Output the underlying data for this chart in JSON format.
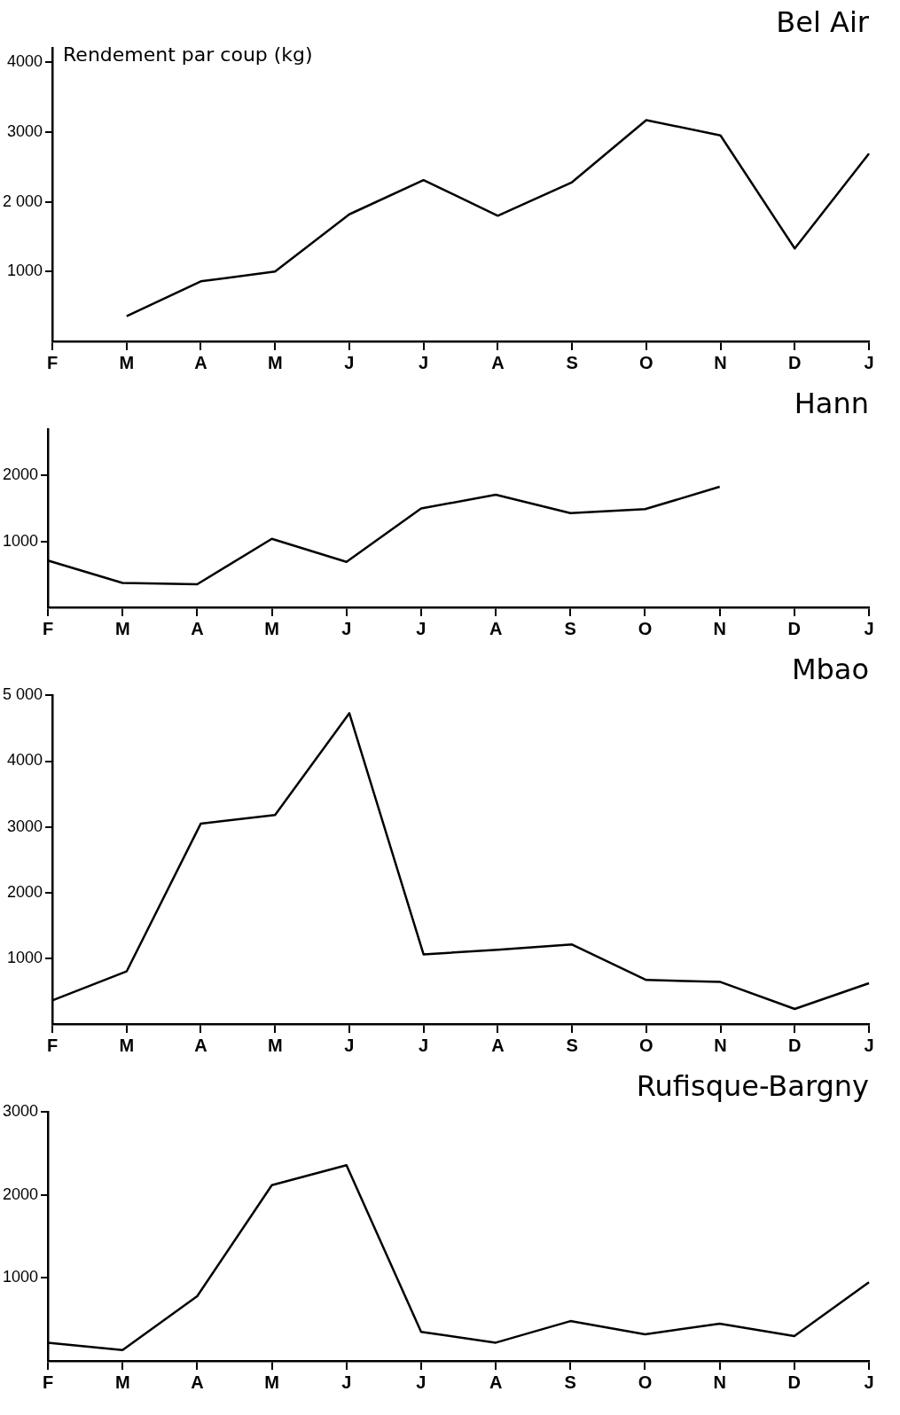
{
  "chart_data": [
    {
      "type": "line",
      "title": "Bel Air",
      "ylabel": "Rendement par coup (kg)",
      "categories": [
        "F",
        "M",
        "A",
        "M",
        "J",
        "J",
        "A",
        "S",
        "O",
        "N",
        "D",
        "J"
      ],
      "series": [
        {
          "color": "#000000",
          "values": [
            null,
            360,
            860,
            1000,
            1820,
            2310,
            1800,
            2280,
            3170,
            2950,
            1330,
            2690
          ]
        }
      ],
      "ylim": [
        0,
        4200
      ],
      "yticks": [
        4000,
        3000,
        {
          "value": 2000,
          "label": "2 000"
        },
        1000
      ],
      "grid": false,
      "legend": false,
      "marker": "none",
      "line_style": "solid"
    },
    {
      "type": "line",
      "title": "Hann",
      "categories": [
        "F",
        "M",
        "A",
        "M",
        "J",
        "J",
        "A",
        "S",
        "O",
        "N",
        "D",
        "J"
      ],
      "series": [
        {
          "color": "#000000",
          "values": [
            710,
            370,
            350,
            1040,
            690,
            1500,
            1710,
            1430,
            1490,
            1830,
            null,
            null
          ]
        }
      ],
      "ylim": [
        0,
        2700
      ],
      "yticks": [
        2000,
        1000
      ],
      "grid": false,
      "legend": false,
      "marker": "none",
      "line_style": "solid"
    },
    {
      "type": "line",
      "title": "Mbao",
      "categories": [
        "F",
        "M",
        "A",
        "M",
        "J",
        "J",
        "A",
        "S",
        "O",
        "N",
        "D",
        "J"
      ],
      "series": [
        {
          "color": "#000000",
          "values": [
            360,
            800,
            3050,
            3180,
            4730,
            1060,
            1130,
            1210,
            670,
            640,
            230,
            620
          ]
        }
      ],
      "ylim": [
        0,
        5000
      ],
      "yticks": [
        {
          "value": 5000,
          "label": "5 000"
        },
        4000,
        3000,
        2000,
        1000
      ],
      "grid": false,
      "legend": false,
      "marker": "none",
      "line_style": "solid"
    },
    {
      "type": "line",
      "title": "Rufisque-Bargny",
      "categories": [
        "F",
        "M",
        "A",
        "M",
        "J",
        "J",
        "A",
        "S",
        "O",
        "N",
        "D",
        "J"
      ],
      "series": [
        {
          "color": "#000000",
          "values": [
            220,
            130,
            780,
            2120,
            2360,
            350,
            220,
            480,
            320,
            450,
            300,
            950
          ]
        }
      ],
      "ylim": [
        0,
        3000
      ],
      "yticks": [
        3000,
        2000,
        1000
      ],
      "grid": false,
      "legend": false,
      "marker": "none",
      "line_style": "solid"
    }
  ]
}
